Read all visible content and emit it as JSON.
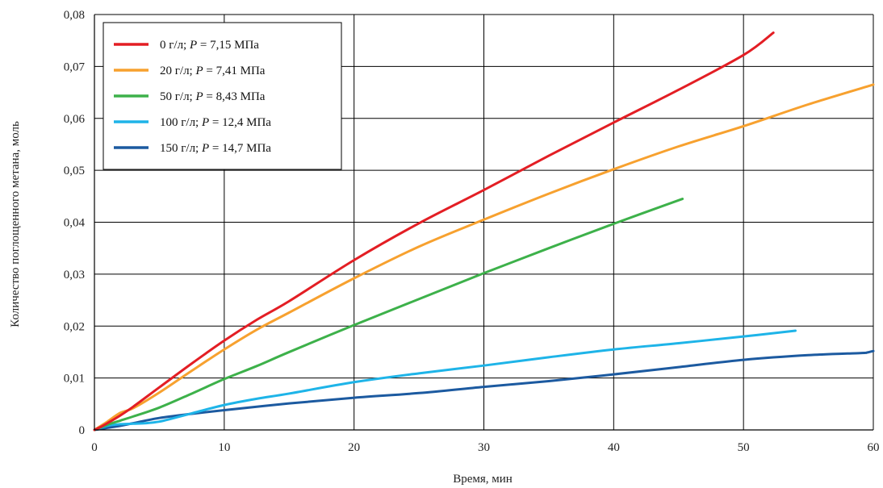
{
  "chart_data": {
    "type": "line",
    "title": "",
    "xlabel": "Время, мин",
    "ylabel": "Количество поглощенного метана, моль",
    "xlim": [
      0,
      60
    ],
    "ylim": [
      0,
      0.08
    ],
    "x_ticks": [
      "0",
      "10",
      "20",
      "30",
      "40",
      "50",
      "60"
    ],
    "y_ticks": [
      "0",
      "0,01",
      "0,02",
      "0,03",
      "0,04",
      "0,05",
      "0,06",
      "0,07",
      "0,08"
    ],
    "grid": true,
    "legend_position": "top-left",
    "series": [
      {
        "name": "0 г/л; P = 7,15 МПа",
        "legend_prefix": "0 г/л; ",
        "legend_param": "P",
        "legend_suffix": " = 7,15 МПа",
        "color": "#e31e24",
        "x": [
          0,
          0.5,
          1,
          2,
          3,
          5,
          7.5,
          10,
          12.5,
          15,
          20,
          25,
          30,
          35,
          40,
          45,
          50,
          52.3
        ],
        "y": [
          0,
          0.0006,
          0.0013,
          0.0028,
          0.0045,
          0.0082,
          0.0128,
          0.0172,
          0.0212,
          0.0248,
          0.0327,
          0.0398,
          0.0462,
          0.0528,
          0.0592,
          0.0655,
          0.0722,
          0.0765
        ]
      },
      {
        "name": "20 г/л; P = 7,41 МПа",
        "legend_prefix": "20 г/л; ",
        "legend_param": "P",
        "legend_suffix": " = 7,41 МПа",
        "color": "#f7a12f",
        "x": [
          0,
          0.5,
          1,
          2,
          3,
          5,
          7.5,
          10,
          12.5,
          15,
          20,
          25,
          30,
          35,
          40,
          45,
          50,
          55,
          60
        ],
        "y": [
          0,
          0.0008,
          0.0016,
          0.0033,
          0.0042,
          0.0072,
          0.0114,
          0.0155,
          0.0193,
          0.0226,
          0.0292,
          0.0353,
          0.0405,
          0.0455,
          0.0502,
          0.0546,
          0.0585,
          0.0627,
          0.0665
        ]
      },
      {
        "name": "50 г/л; P = 8,43 МПа",
        "legend_prefix": "50 г/л; ",
        "legend_param": "P",
        "legend_suffix": " = 8,43 МПа",
        "color": "#3db14a",
        "x": [
          0,
          1,
          2,
          3,
          5,
          7.5,
          10,
          12.5,
          15,
          20,
          25,
          30,
          35,
          40,
          45.3
        ],
        "y": [
          0,
          0.001,
          0.0018,
          0.0026,
          0.0043,
          0.007,
          0.0098,
          0.0123,
          0.015,
          0.0202,
          0.0252,
          0.0302,
          0.035,
          0.0397,
          0.0445
        ]
      },
      {
        "name": "100 г/л; P = 12,4 МПа",
        "legend_prefix": "100 г/л; ",
        "legend_param": "P",
        "legend_suffix": " = 12,4 МПа",
        "color": "#1eb4e8",
        "x": [
          0,
          1,
          2,
          3,
          4,
          5,
          6,
          7.5,
          10,
          12.5,
          15,
          20,
          25,
          30,
          35,
          40,
          45,
          50,
          54
        ],
        "y": [
          0,
          0.0008,
          0.0011,
          0.0012,
          0.0013,
          0.0016,
          0.0022,
          0.0032,
          0.0048,
          0.006,
          0.007,
          0.0092,
          0.0109,
          0.0124,
          0.014,
          0.0155,
          0.0167,
          0.018,
          0.0191
        ]
      },
      {
        "name": "150 г/л; P = 14,7 МПа",
        "legend_prefix": "150 г/л; ",
        "legend_param": "P",
        "legend_suffix": " = 14,7 МПа",
        "color": "#1c5aa0",
        "x": [
          0,
          1,
          2,
          3,
          5,
          7.5,
          10,
          15,
          20,
          25,
          30,
          35,
          40,
          45,
          50,
          55,
          59,
          59.5,
          60
        ],
        "y": [
          0,
          0.0004,
          0.0008,
          0.0013,
          0.0023,
          0.0031,
          0.0038,
          0.0051,
          0.0062,
          0.0071,
          0.0083,
          0.0094,
          0.0107,
          0.0121,
          0.0135,
          0.0144,
          0.0148,
          0.0149,
          0.0152
        ]
      }
    ]
  }
}
